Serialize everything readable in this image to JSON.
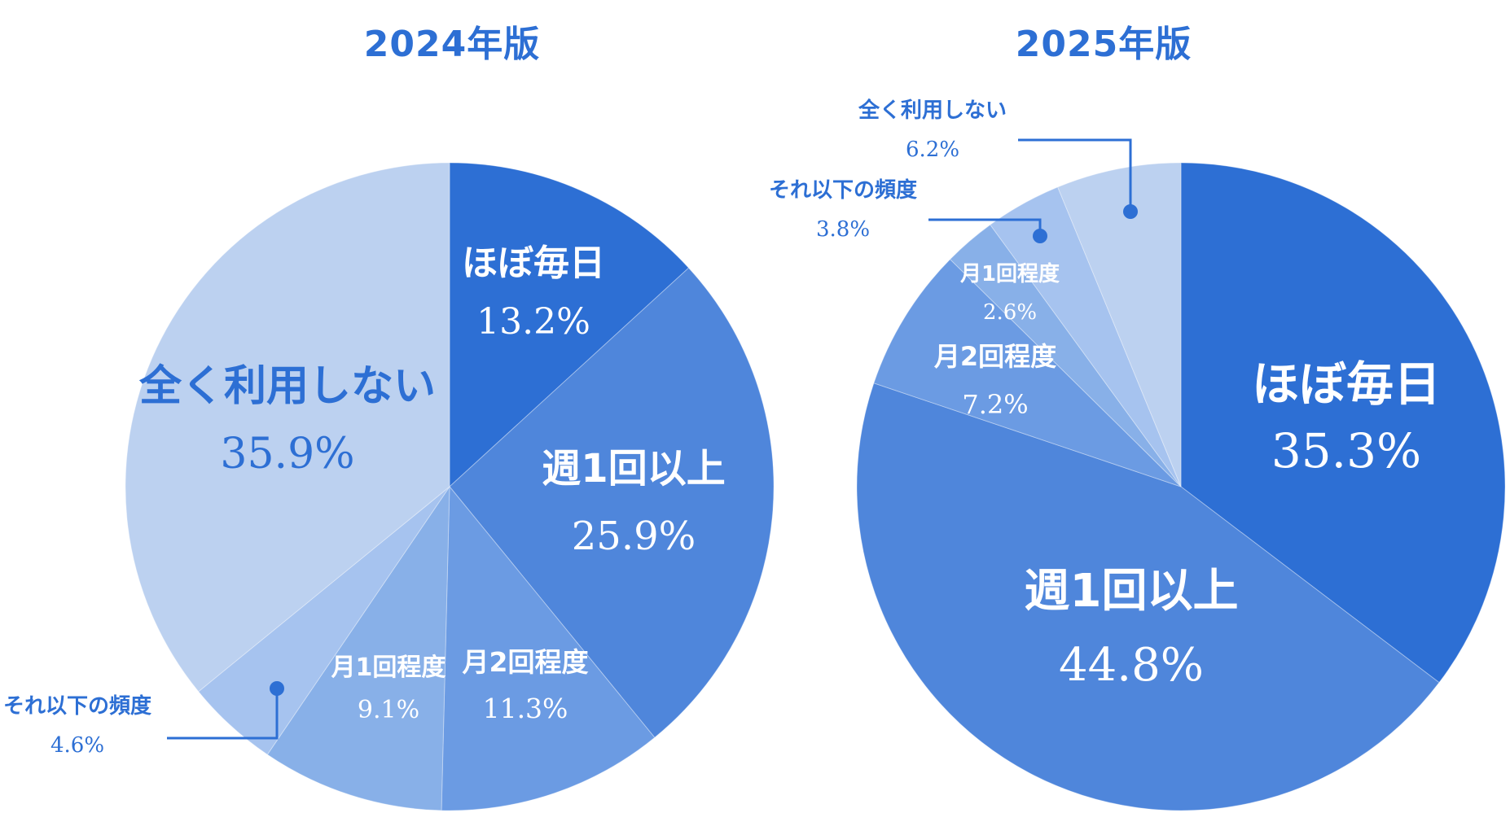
{
  "colors": {
    "title": "#2d6fd4",
    "label_dark": "#2d6fd4",
    "leader": "#2d6fd4",
    "white": "#ffffff"
  },
  "chart_data": [
    {
      "type": "pie",
      "title": "2024年版",
      "slices": [
        {
          "label": "ほぼ毎日",
          "value": 13.2,
          "value_text": "13.2%",
          "color": "#2d6fd4"
        },
        {
          "label": "週1回以上",
          "value": 25.9,
          "value_text": "25.9%",
          "color": "#4f86db"
        },
        {
          "label": "月2回程度",
          "value": 11.3,
          "value_text": "11.3%",
          "color": "#6b9be3"
        },
        {
          "label": "月1回程度",
          "value": 9.1,
          "value_text": "9.1%",
          "color": "#88b0e8"
        },
        {
          "label": "それ以下の頻度",
          "value": 4.6,
          "value_text": "4.6%",
          "color": "#a6c3ef"
        },
        {
          "label": "全く利用しない",
          "value": 35.9,
          "value_text": "35.9%",
          "color": "#bcd1f0"
        }
      ]
    },
    {
      "type": "pie",
      "title": "2025年版",
      "slices": [
        {
          "label": "ほぼ毎日",
          "value": 35.3,
          "value_text": "35.3%",
          "color": "#2d6fd4"
        },
        {
          "label": "週1回以上",
          "value": 44.8,
          "value_text": "44.8%",
          "color": "#4f86db"
        },
        {
          "label": "月2回程度",
          "value": 7.2,
          "value_text": "7.2%",
          "color": "#6b9be3"
        },
        {
          "label": "月1回程度",
          "value": 2.6,
          "value_text": "2.6%",
          "color": "#88b0e8"
        },
        {
          "label": "それ以下の頻度",
          "value": 3.8,
          "value_text": "3.8%",
          "color": "#a6c3ef"
        },
        {
          "label": "全く利用しない",
          "value": 6.2,
          "value_text": "6.2%",
          "color": "#bcd1f0"
        }
      ]
    }
  ]
}
